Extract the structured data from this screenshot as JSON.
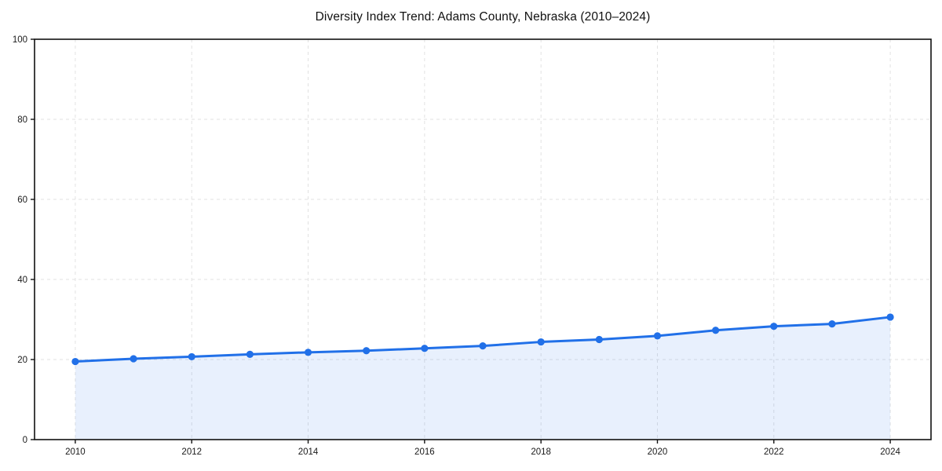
{
  "chart_data": {
    "type": "line",
    "title": "Diversity Index Trend: Adams County, Nebraska (2010–2024)",
    "x": [
      2010,
      2011,
      2012,
      2013,
      2014,
      2015,
      2016,
      2017,
      2018,
      2019,
      2020,
      2021,
      2022,
      2023,
      2024
    ],
    "values": [
      19.5,
      20.2,
      20.7,
      21.3,
      21.8,
      22.2,
      22.8,
      23.4,
      24.4,
      25.0,
      25.9,
      27.3,
      28.3,
      28.9,
      30.6
    ],
    "xlabel": "",
    "ylabel": "",
    "xlim": [
      2009.3,
      2024.7
    ],
    "ylim": [
      0,
      100
    ],
    "x_tick_labels": [
      "2010",
      "2012",
      "2014",
      "2016",
      "2018",
      "2020",
      "2022",
      "2024"
    ],
    "x_tick_values": [
      2010,
      2012,
      2014,
      2016,
      2018,
      2020,
      2022,
      2024
    ],
    "y_tick_labels": [
      "0",
      "20",
      "40",
      "60",
      "80",
      "100"
    ],
    "y_tick_values": [
      0,
      20,
      40,
      60,
      80,
      100
    ],
    "grid": "dashed",
    "legend": "none",
    "area_fill": true,
    "colors": {
      "line": "#2170e8",
      "marker": "#2170e8",
      "fill": "rgba(33,112,232,0.10)",
      "grid": "#e2e2e2",
      "axis": "#111111",
      "tick_text": "#1a1a1a",
      "background": "#ffffff"
    }
  }
}
